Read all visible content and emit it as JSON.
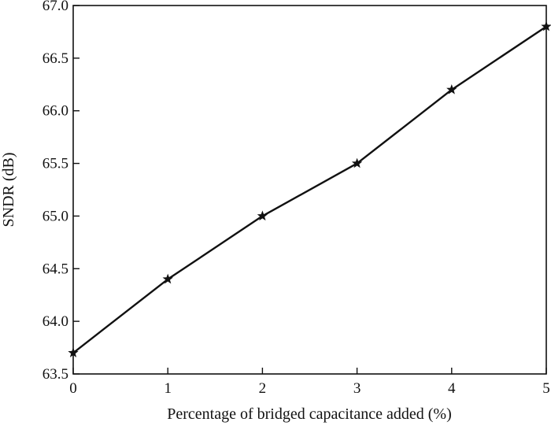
{
  "chart_data": {
    "type": "line",
    "title": "",
    "xlabel": "Percentage of bridged capacitance added (%)",
    "ylabel": "SNDR (dB)",
    "xlim": [
      0,
      5
    ],
    "ylim": [
      63.5,
      67.0
    ],
    "x_ticks": [
      "0",
      "1",
      "2",
      "3",
      "4",
      "5"
    ],
    "y_ticks": [
      "63.5",
      "64.0",
      "64.5",
      "65.0",
      "65.5",
      "66.0",
      "66.5",
      "67.0"
    ],
    "grid": false,
    "legend": "none",
    "series": [
      {
        "marker": "star",
        "color": "#111111",
        "x": [
          0,
          1,
          2,
          3,
          4,
          5
        ],
        "y": [
          63.7,
          64.4,
          65.0,
          65.5,
          66.2,
          66.8
        ]
      }
    ]
  }
}
